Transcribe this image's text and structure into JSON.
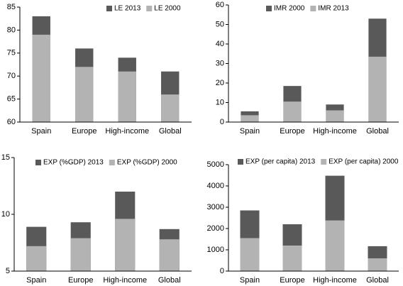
{
  "chart_data": [
    {
      "type": "bar",
      "categories": [
        "Spain",
        "Europe",
        "High-income",
        "Global"
      ],
      "series": [
        {
          "name": "LE 2013",
          "color": "#595959",
          "values": [
            83,
            76,
            74,
            71
          ]
        },
        {
          "name": "LE 2000",
          "color": "#b3b3b3",
          "values": [
            79,
            72,
            71,
            66
          ]
        }
      ],
      "ylim": [
        60,
        85
      ],
      "yticks": [
        60,
        65,
        70,
        75,
        80,
        85
      ]
    },
    {
      "type": "bar",
      "categories": [
        "Spain",
        "Europe",
        "High-income",
        "Global"
      ],
      "series": [
        {
          "name": "IMR 2000",
          "color": "#595959",
          "values": [
            5.5,
            18.5,
            9,
            53
          ]
        },
        {
          "name": "IMR 2013",
          "color": "#b3b3b3",
          "values": [
            3.5,
            10.5,
            6,
            33.5
          ]
        }
      ],
      "ylim": [
        0,
        60
      ],
      "yticks": [
        0,
        10,
        20,
        30,
        40,
        50,
        60
      ]
    },
    {
      "type": "bar",
      "categories": [
        "Spain",
        "Europe",
        "High-income",
        "Global"
      ],
      "series": [
        {
          "name": "EXP (%GDP) 2013",
          "color": "#595959",
          "values": [
            8.9,
            9.3,
            12,
            8.7
          ]
        },
        {
          "name": "EXP (%GDP) 2000",
          "color": "#b3b3b3",
          "values": [
            7.2,
            7.9,
            9.6,
            7.8
          ]
        }
      ],
      "ylim": [
        5,
        15
      ],
      "yticks": [
        5,
        10,
        15
      ]
    },
    {
      "type": "bar",
      "categories": [
        "Spain",
        "Europe",
        "High-income",
        "Global"
      ],
      "series": [
        {
          "name": "EXP (per capita) 2013",
          "color": "#595959",
          "values": [
            2850,
            2200,
            4480,
            1170
          ]
        },
        {
          "name": "EXP (per capita) 2000",
          "color": "#b3b3b3",
          "values": [
            1550,
            1200,
            2380,
            600
          ]
        }
      ],
      "ylim": [
        0,
        5000
      ],
      "yticks": [
        0,
        1000,
        2000,
        3000,
        4000,
        5000
      ]
    }
  ]
}
